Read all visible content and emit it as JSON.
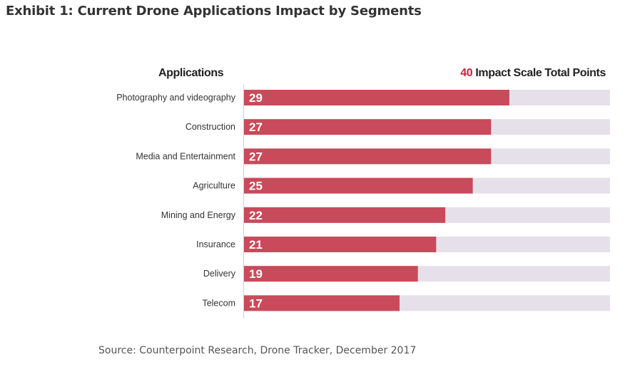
{
  "exhibit_title": "Exhibit 1: Current Drone Applications Impact by Segments",
  "header_left": "Applications",
  "header_right_number": "40",
  "header_right_text_1": " Impact",
  "header_right_text_2": " Scale Total Points",
  "source": "Source: Counterpoint Research, Drone Tracker, December 2017",
  "colors": {
    "bar": "#c94a5a",
    "track": "#e6e0ea",
    "accent": "#c3263c"
  },
  "chart_data": {
    "type": "bar",
    "orientation": "horizontal",
    "categories": [
      "Photography and videography",
      "Construction",
      "Media and Entertainment",
      "Agriculture",
      "Mining and Energy",
      "Insurance",
      "Delivery",
      "Telecom"
    ],
    "values": [
      29,
      27,
      27,
      25,
      22,
      21,
      19,
      17
    ],
    "max": 40,
    "data_labels": true,
    "grid": false
  }
}
